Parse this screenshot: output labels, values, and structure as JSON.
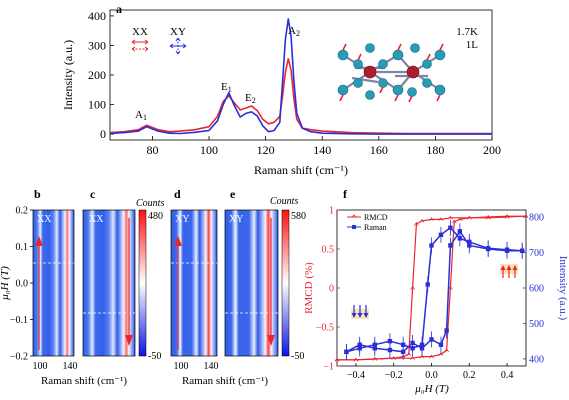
{
  "panel_a": {
    "letter": "a",
    "legend": {
      "xx": "XX",
      "xy": "XY"
    },
    "info_line1": "1.7K",
    "info_line2": "1L",
    "peaks": {
      "a1": "A",
      "a1_sub": "1",
      "e1": "E",
      "e1_sub": "1",
      "e2": "E",
      "e2_sub": "2",
      "a2": "A",
      "a2_sub": "2"
    }
  },
  "panels_be": {
    "letters": [
      "b",
      "c",
      "d",
      "e"
    ],
    "labels": [
      "XX",
      "XX",
      "XY",
      "XY"
    ],
    "cbar1": {
      "title": "Counts",
      "max": "480",
      "min": "-50"
    },
    "cbar2": {
      "title": "Counts",
      "max": "580",
      "min": "-50"
    }
  },
  "panel_f": {
    "letter": "f",
    "legend_rmcd": "RMCD",
    "legend_raman": "Raman"
  },
  "colors": {
    "red": "#e8262f",
    "blue": "#2a2fd8",
    "cyan": "#2a9bb5",
    "darkred": "#b01c2e"
  },
  "chart_data": [
    {
      "type": "line",
      "xlabel": "Raman shift (cm⁻¹)",
      "ylabel": "Intensity (a.u.)",
      "xlim": [
        65,
        200
      ],
      "ylim": [
        -20,
        420
      ],
      "xticks": [
        80,
        100,
        120,
        140,
        160,
        180,
        200
      ],
      "yticks": [
        0,
        100,
        200,
        300,
        400
      ],
      "series": [
        {
          "name": "XX",
          "color": "#e8262f",
          "x": [
            65,
            70,
            75,
            78,
            82,
            86,
            90,
            95,
            100,
            103,
            105,
            107,
            109,
            111,
            113,
            115,
            117,
            119,
            121,
            123,
            125,
            126,
            127,
            128,
            129,
            130,
            131,
            133,
            136,
            140,
            150,
            160,
            170,
            180,
            190,
            200
          ],
          "y": [
            5,
            8,
            15,
            30,
            15,
            8,
            10,
            15,
            25,
            60,
            110,
            130,
            105,
            82,
            88,
            95,
            80,
            50,
            35,
            40,
            60,
            130,
            210,
            255,
            215,
            120,
            50,
            20,
            15,
            10,
            5,
            3,
            2,
            2,
            2,
            2
          ]
        },
        {
          "name": "XY",
          "color": "#2a2fd8",
          "x": [
            65,
            70,
            75,
            78,
            82,
            86,
            90,
            95,
            100,
            103,
            105,
            107,
            109,
            111,
            113,
            115,
            117,
            119,
            121,
            123,
            125,
            126,
            127,
            128,
            129,
            130,
            131,
            133,
            136,
            140,
            150,
            160,
            170,
            180,
            190,
            200
          ],
          "y": [
            2,
            5,
            10,
            25,
            10,
            3,
            2,
            6,
            12,
            45,
            100,
            140,
            95,
            58,
            70,
            75,
            62,
            28,
            8,
            12,
            40,
            180,
            320,
            390,
            330,
            180,
            70,
            20,
            8,
            3,
            1,
            0,
            0,
            0,
            0,
            0
          ]
        }
      ]
    },
    {
      "type": "heatmap",
      "xlabel": "Raman shift (cm⁻¹)",
      "ylabel": "μ₀H (T)",
      "xticks": [
        100,
        140
      ],
      "yticks": [
        0.2,
        0.1,
        0.0,
        -0.1,
        -0.2
      ]
    },
    {
      "type": "line",
      "xlabel": "μ₀H (T)",
      "ylabel": "RMCD (%)",
      "ylabel2": "Intensity (a.u.)",
      "xlim": [
        -0.5,
        0.5
      ],
      "ylim": [
        -1,
        1
      ],
      "ylim2": [
        380,
        820
      ],
      "xticks": [
        -0.4,
        -0.2,
        0.0,
        0.2,
        0.4
      ],
      "yticks": [
        -1,
        -0.5,
        0,
        0.5,
        1
      ],
      "yticks2": [
        400,
        500,
        600,
        700,
        800
      ],
      "series": [
        {
          "name": "RMCD up",
          "color": "#e8262f",
          "x": [
            -0.5,
            -0.4,
            -0.3,
            -0.2,
            -0.1,
            -0.05,
            0.0,
            0.05,
            0.08,
            0.1,
            0.12,
            0.15,
            0.2,
            0.3,
            0.4,
            0.5
          ],
          "y": [
            -0.92,
            -0.92,
            -0.91,
            -0.9,
            -0.9,
            -0.88,
            -0.88,
            -0.85,
            -0.8,
            0.0,
            0.85,
            0.88,
            0.9,
            0.9,
            0.91,
            0.92
          ]
        },
        {
          "name": "RMCD down",
          "color": "#e8262f",
          "x": [
            0.5,
            0.4,
            0.3,
            0.2,
            0.1,
            0.05,
            0.0,
            -0.05,
            -0.08,
            -0.1,
            -0.12,
            -0.15,
            -0.2,
            -0.3,
            -0.4,
            -0.5
          ],
          "y": [
            0.92,
            0.92,
            0.91,
            0.9,
            0.9,
            0.88,
            0.88,
            0.86,
            0.82,
            0.0,
            -0.85,
            -0.88,
            -0.9,
            -0.91,
            -0.92,
            -0.92
          ]
        },
        {
          "name": "Raman up",
          "color": "#2a2fd8",
          "x": [
            -0.45,
            -0.38,
            -0.3,
            -0.22,
            -0.15,
            -0.1,
            -0.05,
            0.0,
            0.05,
            0.08,
            0.1,
            0.15,
            0.2,
            0.3,
            0.4,
            0.48
          ],
          "y": [
            420,
            440,
            430,
            425,
            420,
            445,
            430,
            455,
            440,
            480,
            720,
            760,
            720,
            710,
            705,
            705
          ]
        },
        {
          "name": "Raman down",
          "color": "#2a2fd8",
          "x": [
            0.48,
            0.4,
            0.3,
            0.2,
            0.15,
            0.1,
            0.05,
            0.0,
            -0.02,
            -0.05,
            -0.1,
            -0.15,
            -0.22,
            -0.3,
            -0.38,
            -0.45
          ],
          "y": [
            705,
            708,
            712,
            730,
            740,
            770,
            750,
            720,
            610,
            440,
            430,
            440,
            450,
            440,
            430,
            420
          ]
        }
      ]
    }
  ]
}
